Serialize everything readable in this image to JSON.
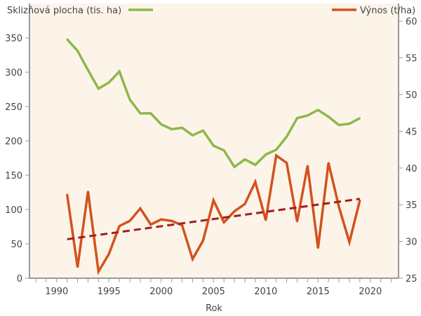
{
  "chart_data": {
    "type": "line",
    "xlabel": "Rok",
    "x": [
      1991,
      1992,
      1993,
      1994,
      1995,
      1996,
      1997,
      1998,
      1999,
      2000,
      2001,
      2002,
      2003,
      2004,
      2005,
      2006,
      2007,
      2008,
      2009,
      2010,
      2011,
      2012,
      2013,
      2014,
      2015,
      2016,
      2017,
      2018,
      2019
    ],
    "xlim": [
      1987.4,
      2022.7
    ],
    "xticks": [
      "1990",
      "1995",
      "2000",
      "2005",
      "2010",
      "2015",
      "2020"
    ],
    "y_left": {
      "ylim": [
        0,
        400
      ],
      "ticks": [
        "0",
        "50",
        "100",
        "150",
        "200",
        "250",
        "300",
        "350"
      ]
    },
    "y_right": {
      "ylim": [
        25,
        62.4
      ],
      "ticks": [
        "25",
        "30",
        "35",
        "40",
        "45",
        "50",
        "55",
        "60"
      ]
    },
    "grid": false,
    "legend_placement": "top",
    "series": [
      {
        "name": "Sklizňová plocha (tis. ha)",
        "axis": "left",
        "color": "#8db84a",
        "values": [
          348,
          331,
          303,
          276,
          285,
          301,
          260,
          240,
          240,
          224,
          217,
          219,
          208,
          215,
          193,
          186,
          162,
          173,
          165,
          180,
          187,
          206,
          233,
          237,
          245,
          235,
          223,
          225,
          233
        ]
      },
      {
        "name": "Výnos (t/ha)",
        "axis": "right",
        "color": "#d4521e",
        "values": [
          36.4,
          26.5,
          36.8,
          25.9,
          28.3,
          32.1,
          32.8,
          34.5,
          32.3,
          33.0,
          32.8,
          32.2,
          27.6,
          30.1,
          35.6,
          32.6,
          34.1,
          35.1,
          38.1,
          32.9,
          41.7,
          40.7,
          32.7,
          40.3,
          29.1,
          40.7,
          34.7,
          29.9,
          35.6
        ]
      }
    ],
    "trendline": {
      "axis": "right",
      "color": "#a51d1d",
      "style": "dashed",
      "x": [
        1991,
        2019
      ],
      "values": [
        30.3,
        35.8
      ]
    }
  }
}
